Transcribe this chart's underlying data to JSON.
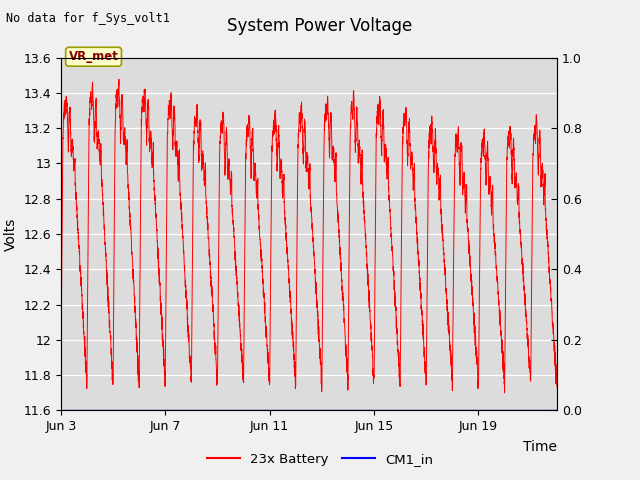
{
  "title": "System Power Voltage",
  "top_left_text": "No data for f_Sys_volt1",
  "ylabel_left": "Volts",
  "xlabel": "Time",
  "ylim_left": [
    11.6,
    13.6
  ],
  "ylim_right": [
    0.0,
    1.0
  ],
  "fig_bg_color": "#f0f0f0",
  "plot_bg_color": "#dcdcdc",
  "annotation_text": "VR_met",
  "annotation_bg": "#ffffcc",
  "annotation_border": "#999900",
  "x_ticks_labels": [
    "Jun 3",
    "Jun 7",
    "Jun 11",
    "Jun 15",
    "Jun 19"
  ],
  "x_ticks_pos": [
    0,
    4,
    8,
    12,
    16
  ],
  "y_ticks_left": [
    11.6,
    11.8,
    12.0,
    12.2,
    12.4,
    12.6,
    12.8,
    13.0,
    13.2,
    13.4,
    13.6
  ],
  "y_ticks_right": [
    0.0,
    0.2,
    0.4,
    0.6,
    0.8,
    1.0
  ],
  "n_days": 19,
  "seed": 42
}
